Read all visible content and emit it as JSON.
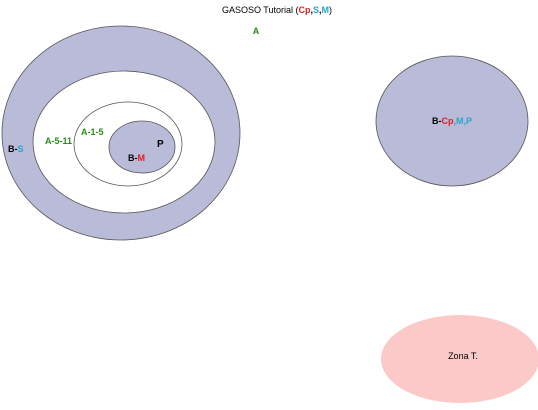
{
  "title": {
    "prefix": "GASOSO Tutorial (",
    "part1": "Cp",
    "sep1": ",",
    "part2": "S",
    "sep2": ",",
    "part3": "M",
    "suffix": ")"
  },
  "labels": {
    "a": "A",
    "b_s": {
      "prefix": "B-",
      "suffix": "S"
    },
    "a_5_11": "A-5-11",
    "a_1_5": "A-1-5",
    "p": "P",
    "b_m": {
      "prefix": "B-",
      "suffix": "M"
    },
    "b_cp_m_p": {
      "prefix": "B-",
      "part1": "Cp",
      "sep": ",",
      "part2": "M,P"
    },
    "zona_t": "Zona T."
  },
  "colors": {
    "region_fill": "#babbd9",
    "zone_fill": "#fcc9c9",
    "outline": "#555555",
    "green": "#2a8a1c",
    "red": "#e51b1b",
    "cyan": "#2aa6c9",
    "black": "#000000"
  }
}
